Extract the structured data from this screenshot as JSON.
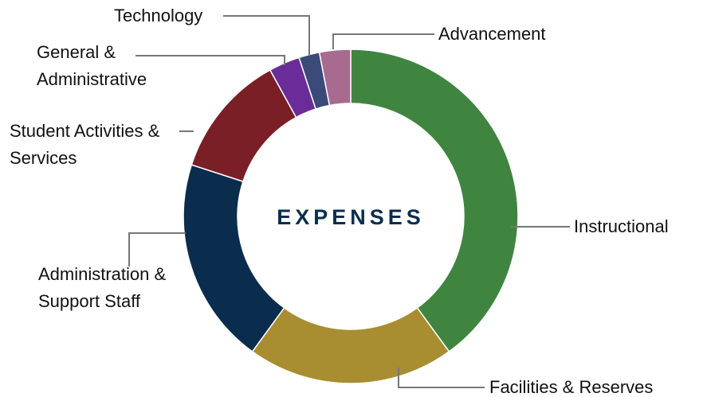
{
  "chart_data": {
    "type": "donut",
    "title": "EXPENSES",
    "categories": [
      "Instructional",
      "Facilities & Reserves",
      "Administration & Support Staff",
      "Student Activities & Services",
      "General & Administrative",
      "Technology",
      "Advancement"
    ],
    "values": [
      40,
      20,
      20,
      12,
      3,
      2,
      3
    ],
    "colors": [
      "#3f8540",
      "#a98d31",
      "#0a2d4d",
      "#7a1f26",
      "#6a2c98",
      "#3b4a78",
      "#a86b8f"
    ]
  }
}
